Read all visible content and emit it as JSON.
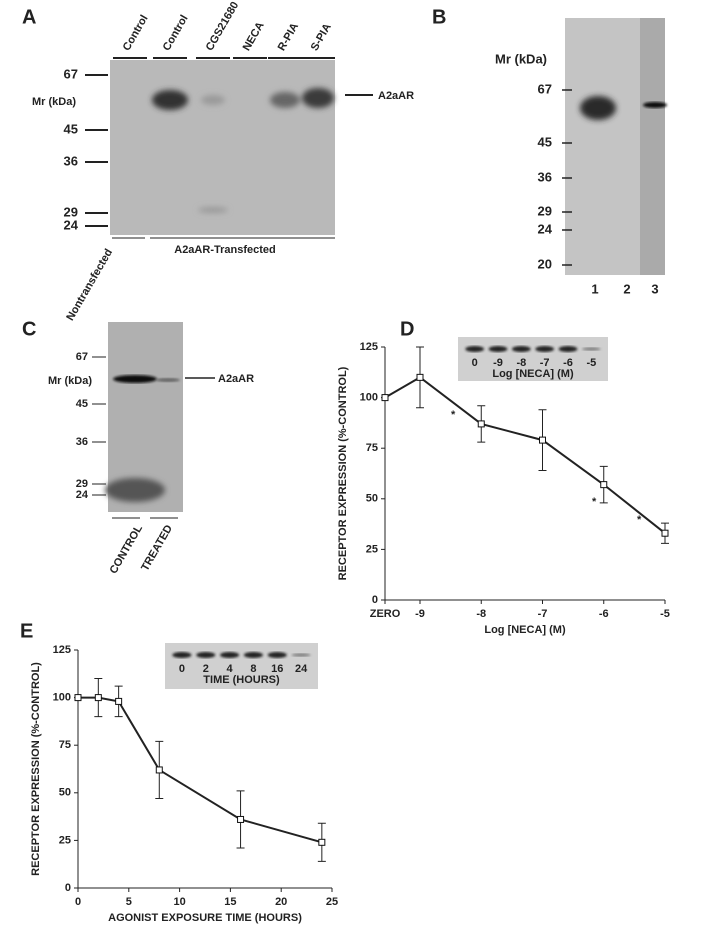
{
  "panel_labels": [
    "A",
    "B",
    "C",
    "D",
    "E"
  ],
  "blot_a": {
    "lanes": [
      "Control",
      "Control",
      "CGS21680",
      "NECA",
      "R-PIA",
      "S-PIA"
    ],
    "markers": [
      "67",
      "45",
      "36",
      "29",
      "24"
    ],
    "mr_label": "Mr (kDa)",
    "band_label": "A2aAR",
    "groups": [
      "Nontransfected",
      "A2aAR-Transfected"
    ]
  },
  "blot_b": {
    "mr_label": "Mr  (kDa)",
    "markers": [
      "67",
      "45",
      "36",
      "29",
      "24",
      "20"
    ],
    "lanes": [
      "1",
      "2",
      "3"
    ]
  },
  "blot_c": {
    "mr_label": "Mr (kDa)",
    "markers": [
      "67",
      "45",
      "36",
      "29",
      "24"
    ],
    "band_label": "A2aAR",
    "lanes": [
      "CONTROL",
      "TREATED"
    ]
  },
  "chart_data": [
    {
      "type": "line",
      "categories": [
        "ZERO",
        "-9",
        "-8",
        "-7",
        "-6",
        "-5"
      ],
      "values": [
        100,
        110,
        87,
        79,
        57,
        33
      ],
      "errors": [
        null,
        15,
        9,
        15,
        9,
        5
      ],
      "color": "#111",
      "x_label": "Log [NECA] (M)",
      "y_label": "RECEPTOR  EXPRESSION  (%-CONTROL)",
      "ylim": [
        0,
        125
      ],
      "yticks": [
        0,
        25,
        50,
        75,
        100,
        125
      ],
      "annotations": [
        "*",
        "*",
        "*"
      ],
      "inset": {
        "lanes": [
          "0",
          "-9",
          "-8",
          "-7",
          "-6",
          "-5"
        ],
        "label": "Log [NECA] (M)"
      }
    },
    {
      "type": "line",
      "x": [
        0,
        2,
        4,
        8,
        16,
        24
      ],
      "values": [
        100,
        100,
        98,
        62,
        36,
        24
      ],
      "errors": [
        null,
        10,
        8,
        15,
        15,
        10
      ],
      "color": "#111",
      "x_label": "AGONIST EXPOSURE TIME (HOURS)",
      "y_label": "RECEPTOR  EXPRESSION  (%-CONTROL)",
      "xlim": [
        0,
        25
      ],
      "xticks": [
        0,
        5,
        10,
        15,
        20,
        25
      ],
      "ylim": [
        0,
        125
      ],
      "yticks": [
        0,
        25,
        50,
        75,
        100,
        125
      ],
      "inset": {
        "lanes": [
          "0",
          "2",
          "4",
          "8",
          "16",
          "24"
        ],
        "label": "TIME (HOURS)"
      }
    }
  ]
}
